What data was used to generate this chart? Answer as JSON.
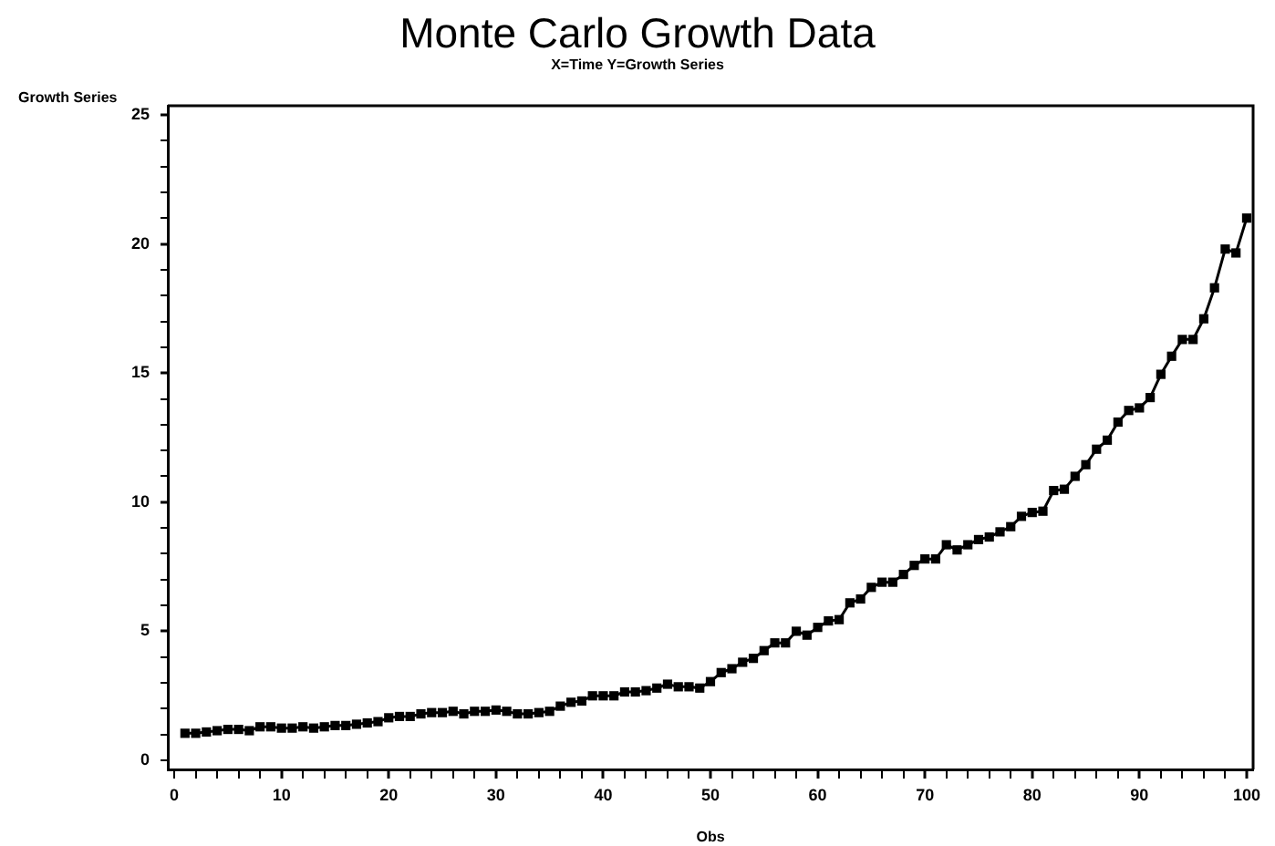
{
  "chart_data": {
    "type": "line",
    "title": "Monte Carlo Growth Data",
    "subtitle": "X=Time Y=Growth Series",
    "xlabel": "Obs",
    "ylabel": "Growth Series",
    "x": [
      1,
      2,
      3,
      4,
      5,
      6,
      7,
      8,
      9,
      10,
      11,
      12,
      13,
      14,
      15,
      16,
      17,
      18,
      19,
      20,
      21,
      22,
      23,
      24,
      25,
      26,
      27,
      28,
      29,
      30,
      31,
      32,
      33,
      34,
      35,
      36,
      37,
      38,
      39,
      40,
      41,
      42,
      43,
      44,
      45,
      46,
      47,
      48,
      49,
      50,
      51,
      52,
      53,
      54,
      55,
      56,
      57,
      58,
      59,
      60,
      61,
      62,
      63,
      64,
      65,
      66,
      67,
      68,
      69,
      70,
      71,
      72,
      73,
      74,
      75,
      76,
      77,
      78,
      79,
      80,
      81,
      82,
      83,
      84,
      85,
      86,
      87,
      88,
      89,
      90,
      91,
      92,
      93,
      94,
      95,
      96,
      97,
      98,
      99,
      100
    ],
    "values": [
      1.05,
      1.05,
      1.1,
      1.15,
      1.2,
      1.2,
      1.15,
      1.3,
      1.3,
      1.25,
      1.25,
      1.3,
      1.25,
      1.3,
      1.35,
      1.35,
      1.4,
      1.45,
      1.5,
      1.65,
      1.7,
      1.7,
      1.8,
      1.85,
      1.85,
      1.9,
      1.8,
      1.9,
      1.9,
      1.95,
      1.9,
      1.8,
      1.8,
      1.85,
      1.9,
      2.1,
      2.25,
      2.3,
      2.5,
      2.5,
      2.5,
      2.65,
      2.65,
      2.7,
      2.8,
      2.95,
      2.85,
      2.85,
      2.8,
      3.05,
      3.4,
      3.55,
      3.8,
      3.95,
      4.25,
      4.55,
      4.55,
      5.0,
      4.85,
      5.15,
      5.4,
      5.45,
      6.1,
      6.25,
      6.7,
      6.9,
      6.9,
      7.2,
      7.55,
      7.8,
      7.8,
      8.35,
      8.15,
      8.35,
      8.55,
      8.65,
      8.85,
      9.05,
      9.45,
      9.6,
      9.65,
      10.45,
      10.5,
      11.0,
      11.45,
      12.05,
      12.4,
      13.1,
      13.55,
      13.65,
      14.05,
      14.95,
      15.65,
      16.3,
      16.3,
      17.1,
      18.3,
      19.8,
      19.65,
      21.0
    ],
    "color": "#000000",
    "marker": "square",
    "line_style": "solid",
    "xlim": [
      -0.6,
      100.6
    ],
    "ylim": [
      -0.35,
      25.35
    ],
    "xticks": [
      0,
      {
        "value": 2,
        "label": null
      },
      {
        "value": 4,
        "label": null
      },
      {
        "value": 6,
        "label": null
      },
      {
        "value": 8,
        "label": null
      },
      10,
      {
        "value": 12,
        "label": null
      },
      {
        "value": 14,
        "label": null
      },
      {
        "value": 16,
        "label": null
      },
      {
        "value": 18,
        "label": null
      },
      20,
      {
        "value": 22,
        "label": null
      },
      {
        "value": 24,
        "label": null
      },
      {
        "value": 26,
        "label": null
      },
      {
        "value": 28,
        "label": null
      },
      30,
      {
        "value": 32,
        "label": null
      },
      {
        "value": 34,
        "label": null
      },
      {
        "value": 36,
        "label": null
      },
      {
        "value": 38,
        "label": null
      },
      40,
      {
        "value": 42,
        "label": null
      },
      {
        "value": 44,
        "label": null
      },
      {
        "value": 46,
        "label": null
      },
      {
        "value": 48,
        "label": null
      },
      50,
      {
        "value": 52,
        "label": null
      },
      {
        "value": 54,
        "label": null
      },
      {
        "value": 56,
        "label": null
      },
      {
        "value": 58,
        "label": null
      },
      60,
      {
        "value": 62,
        "label": null
      },
      {
        "value": 64,
        "label": null
      },
      {
        "value": 66,
        "label": null
      },
      {
        "value": 68,
        "label": null
      },
      70,
      {
        "value": 72,
        "label": null
      },
      {
        "value": 74,
        "label": null
      },
      {
        "value": 76,
        "label": null
      },
      {
        "value": 78,
        "label": null
      },
      80,
      {
        "value": 82,
        "label": null
      },
      {
        "value": 84,
        "label": null
      },
      {
        "value": 86,
        "label": null
      },
      {
        "value": 88,
        "label": null
      },
      90,
      {
        "value": 92,
        "label": null
      },
      {
        "value": 94,
        "label": null
      },
      {
        "value": 96,
        "label": null
      },
      {
        "value": 98,
        "label": null
      },
      100
    ],
    "yticks": [
      0,
      {
        "value": 1,
        "label": null
      },
      {
        "value": 2,
        "label": null
      },
      {
        "value": 3,
        "label": null
      },
      {
        "value": 4,
        "label": null
      },
      5,
      {
        "value": 6,
        "label": null
      },
      {
        "value": 7,
        "label": null
      },
      {
        "value": 8,
        "label": null
      },
      {
        "value": 9,
        "label": null
      },
      10,
      {
        "value": 11,
        "label": null
      },
      {
        "value": 12,
        "label": null
      },
      {
        "value": 13,
        "label": null
      },
      {
        "value": 14,
        "label": null
      },
      15,
      {
        "value": 16,
        "label": null
      },
      {
        "value": 17,
        "label": null
      },
      {
        "value": 18,
        "label": null
      },
      {
        "value": 19,
        "label": null
      },
      20,
      {
        "value": 21,
        "label": null
      },
      {
        "value": 22,
        "label": null
      },
      {
        "value": 23,
        "label": null
      },
      {
        "value": 24,
        "label": null
      },
      25
    ]
  }
}
